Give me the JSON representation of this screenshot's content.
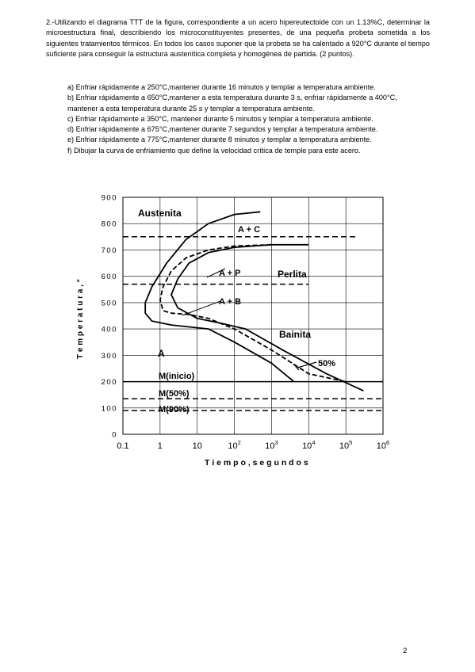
{
  "document": {
    "intro": "2.-Utilizando el diagrama TTT de la figura, correspondiente a un acero hipereutectoide con un 1.13%C, determinar la microestructura final, describiendo los microconstituyentes presentes, de una pequeña probeta sometida a los siguientes tratamientos térmicos. En todos los casos suponer que la probeta se ha calentado a 920°C durante el tiempo suficiente para conseguir la estructura austenítica completa y homogénea de partida. (2 puntos).",
    "items": [
      "a) Enfriar rápidamente a 250°C,mantener durante 16 minutos y templar a temperatura ambiente.",
      "b) Enfriar rápidamente a 650°C,mantener a esta temperatura durante 3 s, enfriar rápidamente a 400°C, mantener a esta temperatura durante 25 s y templar a temperatura ambiente.",
      "c) Enfriar rápidamente a 350°C, mantener durante 5 minutos y templar a temperatura ambiente.",
      "d) Enfriar rápidamente a 675°C,mantener durante 7 segundos y templar a temperatura ambiente.",
      "e) Enfriar rápidamente a 775°C,mantener durante 8 minutos y templar a temperatura ambiente.",
      "f) Dibujar la curva de enfriamiento que define la velocidad crítica de temple para este acero."
    ],
    "page_number": "2"
  },
  "figure": {
    "ylabel": "T e m p e r a t u r a ,  °",
    "xlabel": "T i e m p o ,  s e g u n d o s",
    "y_ticks": [
      "900",
      "800",
      "700",
      "600",
      "500",
      "400",
      "300",
      "200",
      "100",
      "0"
    ],
    "x_ticks": [
      {
        "base": "0.1",
        "exp": ""
      },
      {
        "base": "1",
        "exp": ""
      },
      {
        "base": "10",
        "exp": ""
      },
      {
        "base": "10",
        "exp": "2"
      },
      {
        "base": "10",
        "exp": "3"
      },
      {
        "base": "10",
        "exp": "4"
      },
      {
        "base": "10",
        "exp": "5"
      },
      {
        "base": "10",
        "exp": "6"
      }
    ],
    "labels": {
      "austenita": "Austenita",
      "a_c": "A + C",
      "a_p": "A + P",
      "perlita": "Perlita",
      "a_b": "A + B",
      "bainita": "Bainita",
      "a": "A",
      "fifty": "50%",
      "m_inicio": "M(inicio)",
      "m_50": "M(50%)",
      "m_90": "M(90%)"
    }
  },
  "chart_data": {
    "type": "line",
    "xscale": "log",
    "xlim": [
      0.1,
      1000000
    ],
    "ylim": [
      0,
      900
    ],
    "ylabel": "T e m p e r a t u r a ,  °",
    "xlabel": "T i e m p o ,  s e g u n d o s",
    "grid": true,
    "series": [
      {
        "curve": "start",
        "style": "solid",
        "x": [
          500,
          100,
          20,
          5,
          1.5,
          0.6,
          0.4,
          0.4,
          0.6,
          2,
          20,
          100,
          1000,
          4000
        ],
        "y": [
          845,
          835,
          800,
          740,
          650,
          560,
          500,
          460,
          430,
          415,
          400,
          350,
          270,
          200
        ]
      },
      {
        "curve": "fifty",
        "style": "dashed",
        "x": [
          1000,
          100,
          20,
          5,
          2,
          1.2,
          1,
          1.2,
          2,
          6,
          20,
          100,
          1000,
          10000,
          100000
        ],
        "y": [
          720,
          715,
          700,
          670,
          620,
          560,
          510,
          470,
          460,
          455,
          440,
          400,
          320,
          230,
          200
        ]
      },
      {
        "curve": "end",
        "style": "solid",
        "x": [
          10000,
          1000,
          100,
          20,
          6,
          3,
          2,
          3,
          10,
          50,
          200,
          2000,
          30000,
          300000
        ],
        "y": [
          720,
          720,
          710,
          690,
          650,
          590,
          530,
          480,
          440,
          420,
          400,
          320,
          230,
          165
        ]
      },
      {
        "curve": "Ms",
        "style": "solid",
        "x": [
          0.1,
          1000000
        ],
        "y": [
          200,
          200
        ]
      },
      {
        "curve": "M50",
        "style": "dashed",
        "x": [
          0.1,
          1000000
        ],
        "y": [
          135,
          135
        ]
      },
      {
        "curve": "M90",
        "style": "dashed",
        "x": [
          0.1,
          1000000
        ],
        "y": [
          90,
          90
        ]
      },
      {
        "curve": "A1",
        "style": "dashed",
        "x": [
          0.1,
          10000
        ],
        "y": [
          570,
          570
        ]
      },
      {
        "curve": "Acm",
        "style": "dashed",
        "x": [
          0.1,
          200000
        ],
        "y": [
          750,
          750
        ]
      }
    ]
  }
}
